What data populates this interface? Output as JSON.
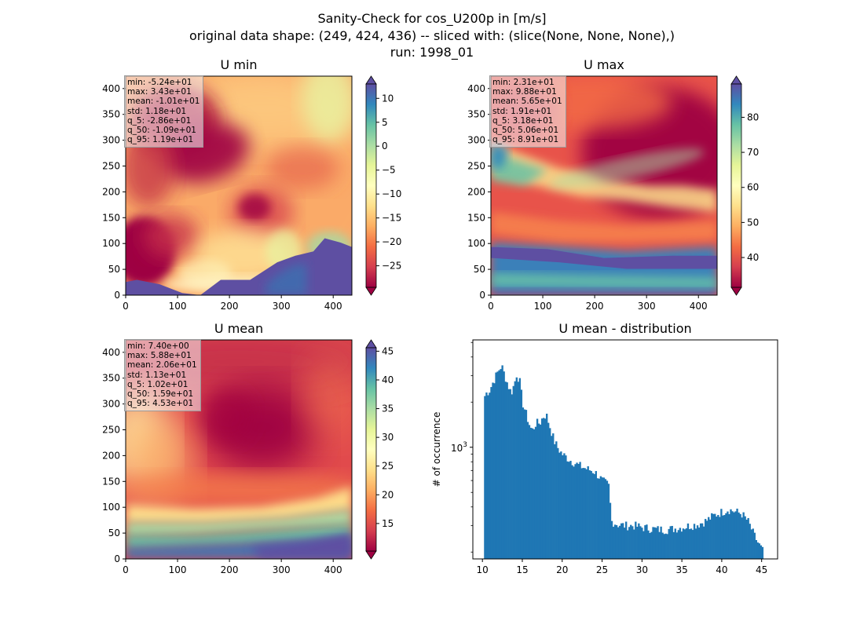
{
  "figure": {
    "title_lines": [
      "Sanity-Check for cos_U200p in [m/s]",
      "original data shape: (249, 424, 436) -- sliced with: (slice(None, None, None),)",
      "run: 1998_01"
    ]
  },
  "colormap": "Spectral",
  "panels": {
    "umin": {
      "title": "U min",
      "stats": [
        "min: -5.24e+01",
        "max: 3.43e+01",
        "mean: -1.01e+01",
        "std: 1.18e+01",
        "q_5: -2.86e+01",
        "q_50: -1.09e+01",
        "q_95: 1.19e+01"
      ],
      "colorbar": {
        "vmin": -29.5,
        "vmax": 13,
        "ticks": [
          10,
          5,
          0,
          -5,
          -10,
          -15,
          -20,
          -25
        ],
        "tick_labels": [
          "10",
          "5",
          "0",
          "−5",
          "−10",
          "−15",
          "−20",
          "−25"
        ],
        "extend": "both"
      }
    },
    "umax": {
      "title": "U max",
      "stats": [
        "min: 2.31e+01",
        "max: 9.88e+01",
        "mean: 5.65e+01",
        "std: 1.91e+01",
        "q_5: 3.18e+01",
        "q_50: 5.06e+01",
        "q_95: 8.91e+01"
      ],
      "colorbar": {
        "vmin": 31.5,
        "vmax": 89.5,
        "ticks": [
          80,
          70,
          60,
          50,
          40
        ],
        "tick_labels": [
          "80",
          "70",
          "60",
          "50",
          "40"
        ],
        "extend": "both"
      }
    },
    "umean": {
      "title": "U mean",
      "stats": [
        "min: 7.40e+00",
        "max: 5.88e+01",
        "mean: 2.06e+01",
        "std: 1.13e+01",
        "q_5: 1.02e+01",
        "q_50: 1.59e+01",
        "q_95: 4.53e+01"
      ],
      "colorbar": {
        "vmin": 10.2,
        "vmax": 45.6,
        "ticks": [
          45,
          40,
          35,
          30,
          25,
          20,
          15
        ],
        "tick_labels": [
          "45",
          "40",
          "35",
          "30",
          "25",
          "20",
          "15"
        ],
        "extend": "both"
      }
    },
    "map_axes": {
      "x_ticks": [
        0,
        100,
        200,
        300,
        400
      ],
      "y_ticks": [
        0,
        50,
        100,
        150,
        200,
        250,
        300,
        350,
        400
      ],
      "xlim": [
        0,
        436
      ],
      "ylim": [
        0,
        424
      ]
    }
  },
  "chart_data": {
    "type": "bar",
    "title": "U mean - distribution",
    "xlabel": "",
    "ylabel": "# of occurrence",
    "y_scale": "log",
    "y_tick_labels": [
      {
        "value": 1000,
        "label": "10^3"
      }
    ],
    "xlim": [
      8.8,
      47
    ],
    "ylim": [
      180,
      5200
    ],
    "x_ticks": [
      10,
      15,
      20,
      25,
      30,
      35,
      40,
      45
    ],
    "bar_color": "#1f77b4",
    "bins": {
      "start": 10.2,
      "end": 45.2,
      "count": 176
    },
    "anchor_counts": [
      [
        10.2,
        2150
      ],
      [
        10.5,
        2300
      ],
      [
        10.9,
        2400
      ],
      [
        11.3,
        2700
      ],
      [
        11.7,
        3000
      ],
      [
        12.0,
        3250
      ],
      [
        12.4,
        3500
      ],
      [
        12.8,
        3000
      ],
      [
        13.2,
        2600
      ],
      [
        13.6,
        2300
      ],
      [
        14.0,
        2650
      ],
      [
        14.3,
        3100
      ],
      [
        14.7,
        2700
      ],
      [
        15.0,
        2000
      ],
      [
        15.5,
        1650
      ],
      [
        16.0,
        1350
      ],
      [
        16.3,
        1300
      ],
      [
        16.7,
        1450
      ],
      [
        17.2,
        1450
      ],
      [
        17.6,
        1600
      ],
      [
        18.0,
        1650
      ],
      [
        18.4,
        1400
      ],
      [
        19.0,
        1100
      ],
      [
        19.5,
        980
      ],
      [
        20.0,
        900
      ],
      [
        21.0,
        820
      ],
      [
        22.0,
        760
      ],
      [
        23.0,
        720
      ],
      [
        24.0,
        690
      ],
      [
        24.6,
        640
      ],
      [
        25.0,
        600
      ],
      [
        25.8,
        560
      ],
      [
        26.2,
        320
      ],
      [
        27.0,
        305
      ],
      [
        28.0,
        300
      ],
      [
        29.0,
        300
      ],
      [
        30.0,
        292
      ],
      [
        31.0,
        287
      ],
      [
        32.0,
        283
      ],
      [
        33.0,
        282
      ],
      [
        34.0,
        286
      ],
      [
        35.0,
        292
      ],
      [
        36.0,
        300
      ],
      [
        37.0,
        306
      ],
      [
        38.0,
        322
      ],
      [
        39.0,
        350
      ],
      [
        40.0,
        370
      ],
      [
        40.8,
        385
      ],
      [
        41.5,
        375
      ],
      [
        42.5,
        360
      ],
      [
        43.3,
        320
      ],
      [
        44.0,
        262
      ],
      [
        44.5,
        232
      ],
      [
        45.2,
        200
      ]
    ]
  }
}
